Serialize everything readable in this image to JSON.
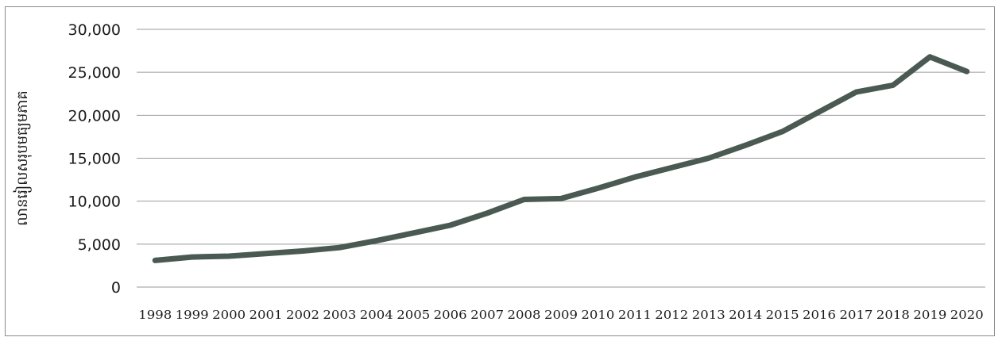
{
  "chart_data": {
    "type": "line",
    "title": "",
    "xlabel": "",
    "ylabel": "លានរៀលសរុបមធ្យមភាគ",
    "x": [
      "1998",
      "1999",
      "2000",
      "2001",
      "2002",
      "2003",
      "2004",
      "2005",
      "2006",
      "2007",
      "2008",
      "2009",
      "2010",
      "2011",
      "2012",
      "2013",
      "2014",
      "2015",
      "2016",
      "2017",
      "2018",
      "2019",
      "2020"
    ],
    "series": [
      {
        "values": [
          3100,
          3500,
          3600,
          3900,
          4200,
          4600,
          5400,
          6300,
          7200,
          8600,
          10200,
          10300,
          11500,
          12800,
          13900,
          15000,
          16500,
          18100,
          20400,
          22700,
          23500,
          26800,
          25100
        ],
        "color": "#4a5a52"
      }
    ],
    "yticks": [
      "0",
      "5,000",
      "10,000",
      "15,000",
      "20,000",
      "25,000",
      "30,000"
    ],
    "ylim": [
      0,
      30000
    ],
    "grid": true,
    "legend": "none",
    "colors": {
      "gridline": "#9a9a9a",
      "frame": "#8a8a8a",
      "line": "#4a5a52"
    }
  }
}
